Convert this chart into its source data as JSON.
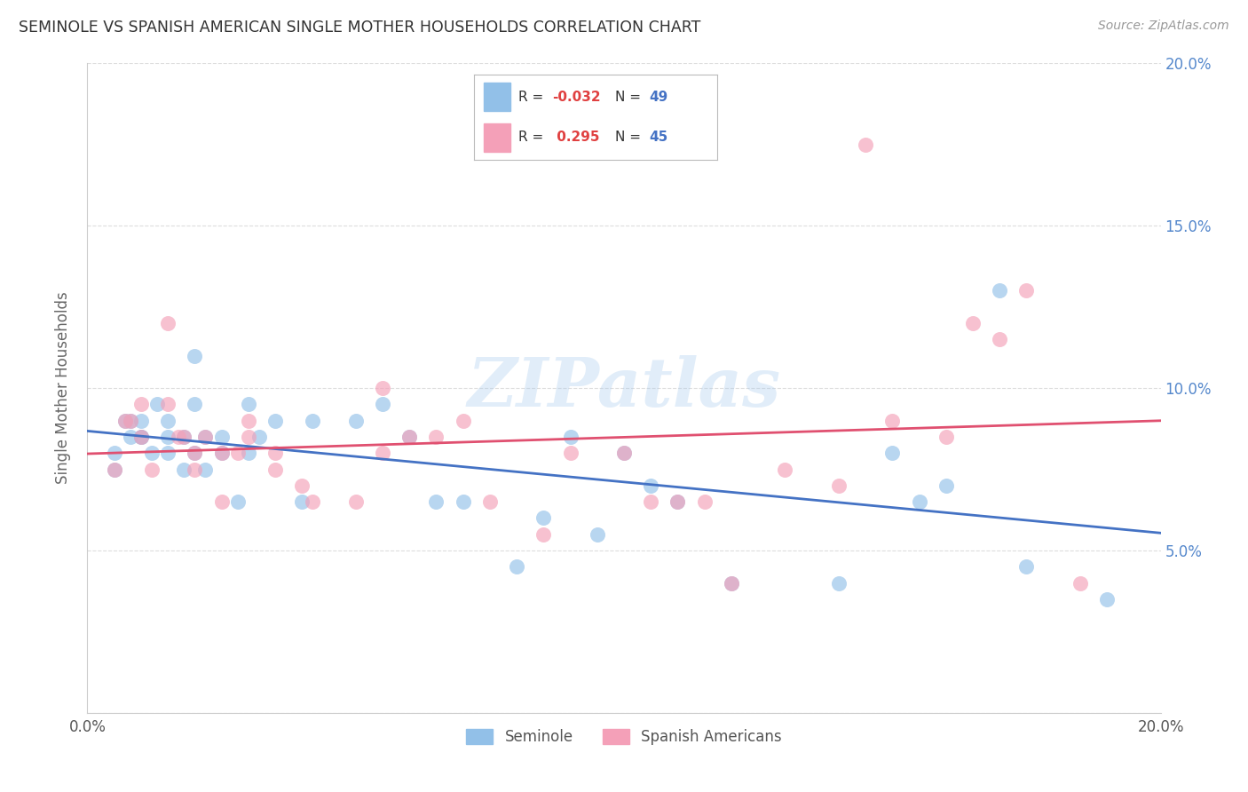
{
  "title": "SEMINOLE VS SPANISH AMERICAN SINGLE MOTHER HOUSEHOLDS CORRELATION CHART",
  "source": "Source: ZipAtlas.com",
  "ylabel": "Single Mother Households",
  "xlim": [
    0.0,
    0.2
  ],
  "ylim": [
    0.0,
    0.2
  ],
  "x_ticks": [
    0.0,
    0.05,
    0.1,
    0.15,
    0.2
  ],
  "x_tick_labels": [
    "0.0%",
    "",
    "",
    "",
    "20.0%"
  ],
  "y_ticks": [
    0.0,
    0.05,
    0.1,
    0.15,
    0.2
  ],
  "y_tick_labels_left": [
    "",
    "",
    "",
    "",
    ""
  ],
  "y_tick_labels_right": [
    "",
    "5.0%",
    "10.0%",
    "15.0%",
    "20.0%"
  ],
  "watermark": "ZIPatlas",
  "r1_text": "R = -0.032",
  "n1_text": "N = 49",
  "r2_text": "R =  0.295",
  "n2_text": "N = 45",
  "color_seminole": "#92C0E8",
  "color_spanish": "#F4A0B8",
  "color_line_seminole": "#4472C4",
  "color_line_spanish": "#E05070",
  "background_color": "#FFFFFF",
  "grid_color": "#DDDDDD",
  "seminole_x": [
    0.005,
    0.005,
    0.007,
    0.008,
    0.008,
    0.01,
    0.01,
    0.01,
    0.012,
    0.013,
    0.015,
    0.015,
    0.015,
    0.018,
    0.018,
    0.02,
    0.02,
    0.02,
    0.022,
    0.022,
    0.025,
    0.025,
    0.028,
    0.03,
    0.03,
    0.032,
    0.035,
    0.04,
    0.042,
    0.05,
    0.055,
    0.06,
    0.065,
    0.07,
    0.08,
    0.085,
    0.09,
    0.095,
    0.1,
    0.105,
    0.11,
    0.12,
    0.14,
    0.15,
    0.155,
    0.16,
    0.17,
    0.175,
    0.19
  ],
  "seminole_y": [
    0.08,
    0.075,
    0.09,
    0.085,
    0.09,
    0.085,
    0.09,
    0.085,
    0.08,
    0.095,
    0.085,
    0.09,
    0.08,
    0.085,
    0.075,
    0.11,
    0.095,
    0.08,
    0.085,
    0.075,
    0.085,
    0.08,
    0.065,
    0.095,
    0.08,
    0.085,
    0.09,
    0.065,
    0.09,
    0.09,
    0.095,
    0.085,
    0.065,
    0.065,
    0.045,
    0.06,
    0.085,
    0.055,
    0.08,
    0.07,
    0.065,
    0.04,
    0.04,
    0.08,
    0.065,
    0.07,
    0.13,
    0.045,
    0.035
  ],
  "spanish_x": [
    0.005,
    0.007,
    0.008,
    0.01,
    0.01,
    0.012,
    0.015,
    0.015,
    0.017,
    0.018,
    0.02,
    0.02,
    0.022,
    0.025,
    0.025,
    0.028,
    0.03,
    0.03,
    0.035,
    0.035,
    0.04,
    0.042,
    0.05,
    0.055,
    0.055,
    0.06,
    0.065,
    0.07,
    0.075,
    0.085,
    0.09,
    0.1,
    0.105,
    0.11,
    0.115,
    0.12,
    0.13,
    0.14,
    0.145,
    0.15,
    0.16,
    0.165,
    0.17,
    0.175,
    0.185
  ],
  "spanish_y": [
    0.075,
    0.09,
    0.09,
    0.085,
    0.095,
    0.075,
    0.095,
    0.12,
    0.085,
    0.085,
    0.08,
    0.075,
    0.085,
    0.08,
    0.065,
    0.08,
    0.09,
    0.085,
    0.075,
    0.08,
    0.07,
    0.065,
    0.065,
    0.08,
    0.1,
    0.085,
    0.085,
    0.09,
    0.065,
    0.055,
    0.08,
    0.08,
    0.065,
    0.065,
    0.065,
    0.04,
    0.075,
    0.07,
    0.175,
    0.09,
    0.085,
    0.12,
    0.115,
    0.13,
    0.04
  ]
}
